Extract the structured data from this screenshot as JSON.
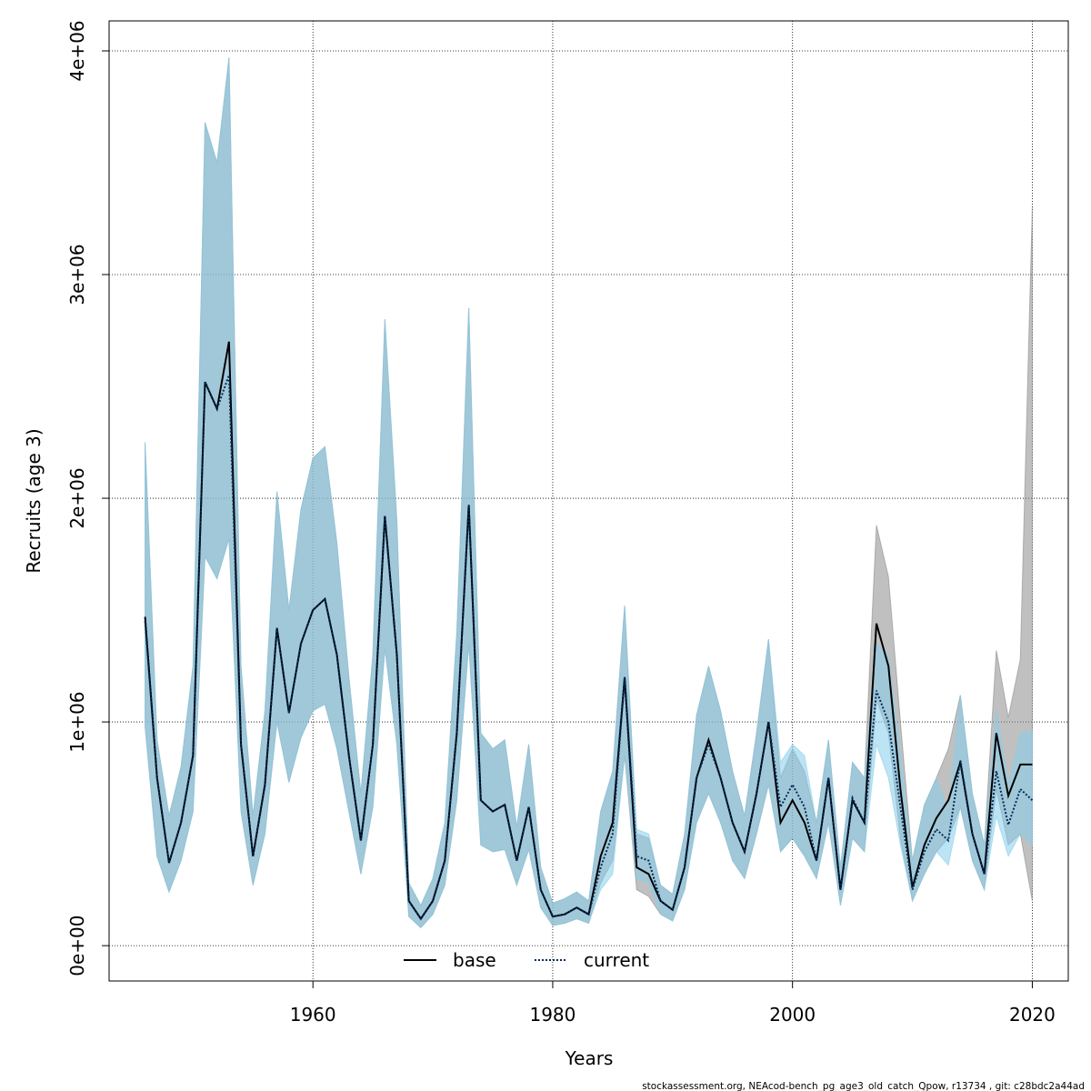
{
  "chart_data": {
    "type": "line",
    "ylabel": "Recruits (age 3)",
    "xlabel": "Years",
    "footer": "stockassessment.org, NEAcod-bench_pg_age3_old_catch_Qpow, r13734 , git: c28bdc2a44ad",
    "x": [
      1946,
      1947,
      1948,
      1949,
      1950,
      1951,
      1952,
      1953,
      1954,
      1955,
      1956,
      1957,
      1958,
      1959,
      1960,
      1961,
      1962,
      1963,
      1964,
      1965,
      1966,
      1967,
      1968,
      1969,
      1970,
      1971,
      1972,
      1973,
      1974,
      1975,
      1976,
      1977,
      1978,
      1979,
      1980,
      1981,
      1982,
      1983,
      1984,
      1985,
      1986,
      1987,
      1988,
      1989,
      1990,
      1991,
      1992,
      1993,
      1994,
      1995,
      1996,
      1997,
      1998,
      1999,
      2000,
      2001,
      2002,
      2003,
      2004,
      2005,
      2006,
      2007,
      2008,
      2009,
      2010,
      2011,
      2012,
      2013,
      2014,
      2015,
      2016,
      2017,
      2018,
      2019,
      2020
    ],
    "series": [
      {
        "name": "base",
        "color": "#000000",
        "linestyle": "solid",
        "band_color": "#8c8c8c",
        "values": [
          1470000,
          750000,
          370000,
          550000,
          850000,
          2520000,
          2400000,
          2700000,
          900000,
          400000,
          720000,
          1420000,
          1040000,
          1350000,
          1500000,
          1550000,
          1300000,
          850000,
          470000,
          900000,
          1920000,
          1300000,
          200000,
          120000,
          200000,
          380000,
          950000,
          1970000,
          650000,
          600000,
          630000,
          380000,
          620000,
          250000,
          130000,
          140000,
          170000,
          140000,
          400000,
          550000,
          1200000,
          350000,
          320000,
          200000,
          160000,
          350000,
          750000,
          920000,
          750000,
          550000,
          420000,
          680000,
          1000000,
          550000,
          650000,
          550000,
          380000,
          750000,
          250000,
          650000,
          550000,
          1440000,
          1250000,
          700000,
          260000,
          450000,
          570000,
          650000,
          820000,
          500000,
          320000,
          950000,
          670000,
          810000,
          810000
        ],
        "low": [
          980000,
          400000,
          240000,
          380000,
          600000,
          1740000,
          1640000,
          1820000,
          600000,
          270000,
          500000,
          1000000,
          730000,
          930000,
          1050000,
          1080000,
          880000,
          600000,
          320000,
          620000,
          1330000,
          900000,
          130000,
          80000,
          140000,
          270000,
          650000,
          1350000,
          450000,
          420000,
          430000,
          270000,
          430000,
          170000,
          90000,
          100000,
          120000,
          100000,
          280000,
          380000,
          850000,
          250000,
          220000,
          140000,
          110000,
          250000,
          550000,
          680000,
          550000,
          380000,
          300000,
          500000,
          720000,
          420000,
          480000,
          400000,
          300000,
          550000,
          180000,
          480000,
          420000,
          1100000,
          950000,
          480000,
          200000,
          320000,
          420000,
          480000,
          620000,
          380000,
          250000,
          700000,
          450000,
          500000,
          200000
        ],
        "high": [
          2250000,
          920000,
          580000,
          800000,
          1250000,
          3680000,
          3500000,
          3970000,
          1250000,
          580000,
          1050000,
          2030000,
          1500000,
          1950000,
          2180000,
          2230000,
          1800000,
          1200000,
          680000,
          1300000,
          2800000,
          1900000,
          280000,
          180000,
          300000,
          550000,
          1400000,
          2850000,
          950000,
          880000,
          920000,
          530000,
          900000,
          350000,
          190000,
          210000,
          240000,
          200000,
          600000,
          780000,
          1520000,
          500000,
          480000,
          270000,
          230000,
          500000,
          1030000,
          1250000,
          1050000,
          780000,
          580000,
          950000,
          1370000,
          750000,
          880000,
          780000,
          550000,
          920000,
          350000,
          820000,
          750000,
          1880000,
          1650000,
          1000000,
          380000,
          630000,
          750000,
          880000,
          1120000,
          680000,
          450000,
          1320000,
          1020000,
          1280000,
          3300000
        ]
      },
      {
        "name": "current",
        "color": "#002b5c",
        "linestyle": "dotted",
        "band_color": "#87ceeb",
        "values": [
          1450000,
          750000,
          370000,
          550000,
          850000,
          2520000,
          2400000,
          2550000,
          900000,
          400000,
          720000,
          1420000,
          1040000,
          1350000,
          1500000,
          1550000,
          1300000,
          850000,
          470000,
          900000,
          1920000,
          1300000,
          200000,
          120000,
          200000,
          380000,
          950000,
          1970000,
          650000,
          600000,
          630000,
          380000,
          620000,
          250000,
          130000,
          140000,
          170000,
          140000,
          350000,
          500000,
          1200000,
          400000,
          380000,
          200000,
          160000,
          350000,
          750000,
          900000,
          750000,
          550000,
          420000,
          680000,
          1000000,
          620000,
          720000,
          620000,
          380000,
          750000,
          250000,
          660000,
          550000,
          1140000,
          1000000,
          620000,
          250000,
          420000,
          520000,
          470000,
          830000,
          500000,
          320000,
          780000,
          540000,
          700000,
          650000
        ],
        "low": [
          980000,
          400000,
          240000,
          380000,
          600000,
          1740000,
          1640000,
          1820000,
          600000,
          270000,
          500000,
          1000000,
          730000,
          930000,
          1050000,
          1080000,
          880000,
          600000,
          320000,
          620000,
          1330000,
          900000,
          130000,
          80000,
          140000,
          270000,
          650000,
          1350000,
          450000,
          420000,
          430000,
          270000,
          430000,
          170000,
          90000,
          100000,
          120000,
          100000,
          250000,
          320000,
          850000,
          300000,
          280000,
          140000,
          110000,
          250000,
          550000,
          680000,
          550000,
          380000,
          300000,
          500000,
          720000,
          420000,
          480000,
          400000,
          300000,
          550000,
          180000,
          480000,
          420000,
          900000,
          750000,
          450000,
          200000,
          320000,
          420000,
          360000,
          620000,
          380000,
          250000,
          580000,
          400000,
          500000,
          450000
        ],
        "high": [
          2250000,
          920000,
          580000,
          800000,
          1250000,
          3680000,
          3500000,
          3970000,
          1250000,
          580000,
          1050000,
          2030000,
          1500000,
          1950000,
          2180000,
          2230000,
          1800000,
          1200000,
          680000,
          1300000,
          2800000,
          1900000,
          280000,
          180000,
          300000,
          550000,
          1400000,
          2850000,
          950000,
          880000,
          920000,
          530000,
          900000,
          350000,
          190000,
          210000,
          240000,
          200000,
          600000,
          780000,
          1520000,
          520000,
          500000,
          270000,
          230000,
          500000,
          1030000,
          1250000,
          1050000,
          780000,
          580000,
          950000,
          1370000,
          820000,
          900000,
          850000,
          550000,
          920000,
          350000,
          820000,
          750000,
          1350000,
          1300000,
          850000,
          380000,
          630000,
          750000,
          600000,
          1120000,
          680000,
          450000,
          1050000,
          720000,
          950000,
          960000
        ]
      }
    ],
    "xlim": [
      1943,
      2023
    ],
    "xticks": [
      1960,
      1980,
      2000,
      2020
    ],
    "ylim": [
      -158000,
      4134000
    ],
    "yticks": [
      {
        "value": 0,
        "label": "0e+00"
      },
      {
        "value": 1000000,
        "label": "1e+06"
      },
      {
        "value": 2000000,
        "label": "2e+06"
      },
      {
        "value": 3000000,
        "label": "3e+06"
      },
      {
        "value": 4000000,
        "label": "4e+06"
      }
    ],
    "grid": true,
    "legend": "bottom"
  }
}
